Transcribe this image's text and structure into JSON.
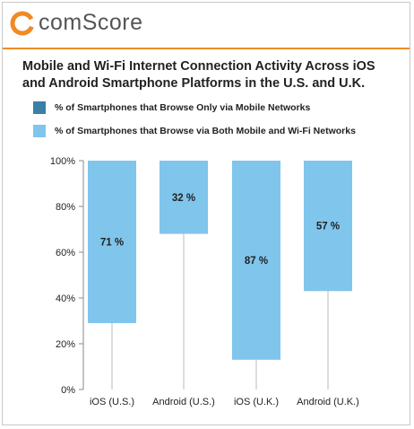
{
  "brand": {
    "logo_text": "comScore",
    "accent_color": "#f08a24",
    "icon": "comscore-logo-mark"
  },
  "chart_data": {
    "type": "bar",
    "title": "Mobile and Wi-Fi Internet Connection Activity Across iOS and Android Smartphone Platforms in the U.S. and U.K.",
    "categories": [
      "iOS (U.S.)",
      "Android (U.S.)",
      "iOS (U.K.)",
      "Android (U.K.)"
    ],
    "series": [
      {
        "name": "% of Smartphones that Browse Only via Mobile Networks",
        "color": "#3a7fa6",
        "values": [
          0,
          0,
          0,
          0
        ]
      },
      {
        "name": "% of Smartphones that Browse via Both Mobile and Wi-Fi Networks",
        "color": "#80c5ec",
        "values": [
          71,
          32,
          87,
          57
        ],
        "data_labels": [
          "71 %",
          "32 %",
          "87 %",
          "57 %"
        ]
      }
    ],
    "ylim": [
      0,
      100
    ],
    "yticks": [
      0,
      20,
      40,
      60,
      80,
      100
    ],
    "ytick_labels": [
      "0%",
      "20%",
      "40%",
      "60%",
      "80%",
      "100%"
    ],
    "legend_position": "top-left",
    "grid": false
  }
}
